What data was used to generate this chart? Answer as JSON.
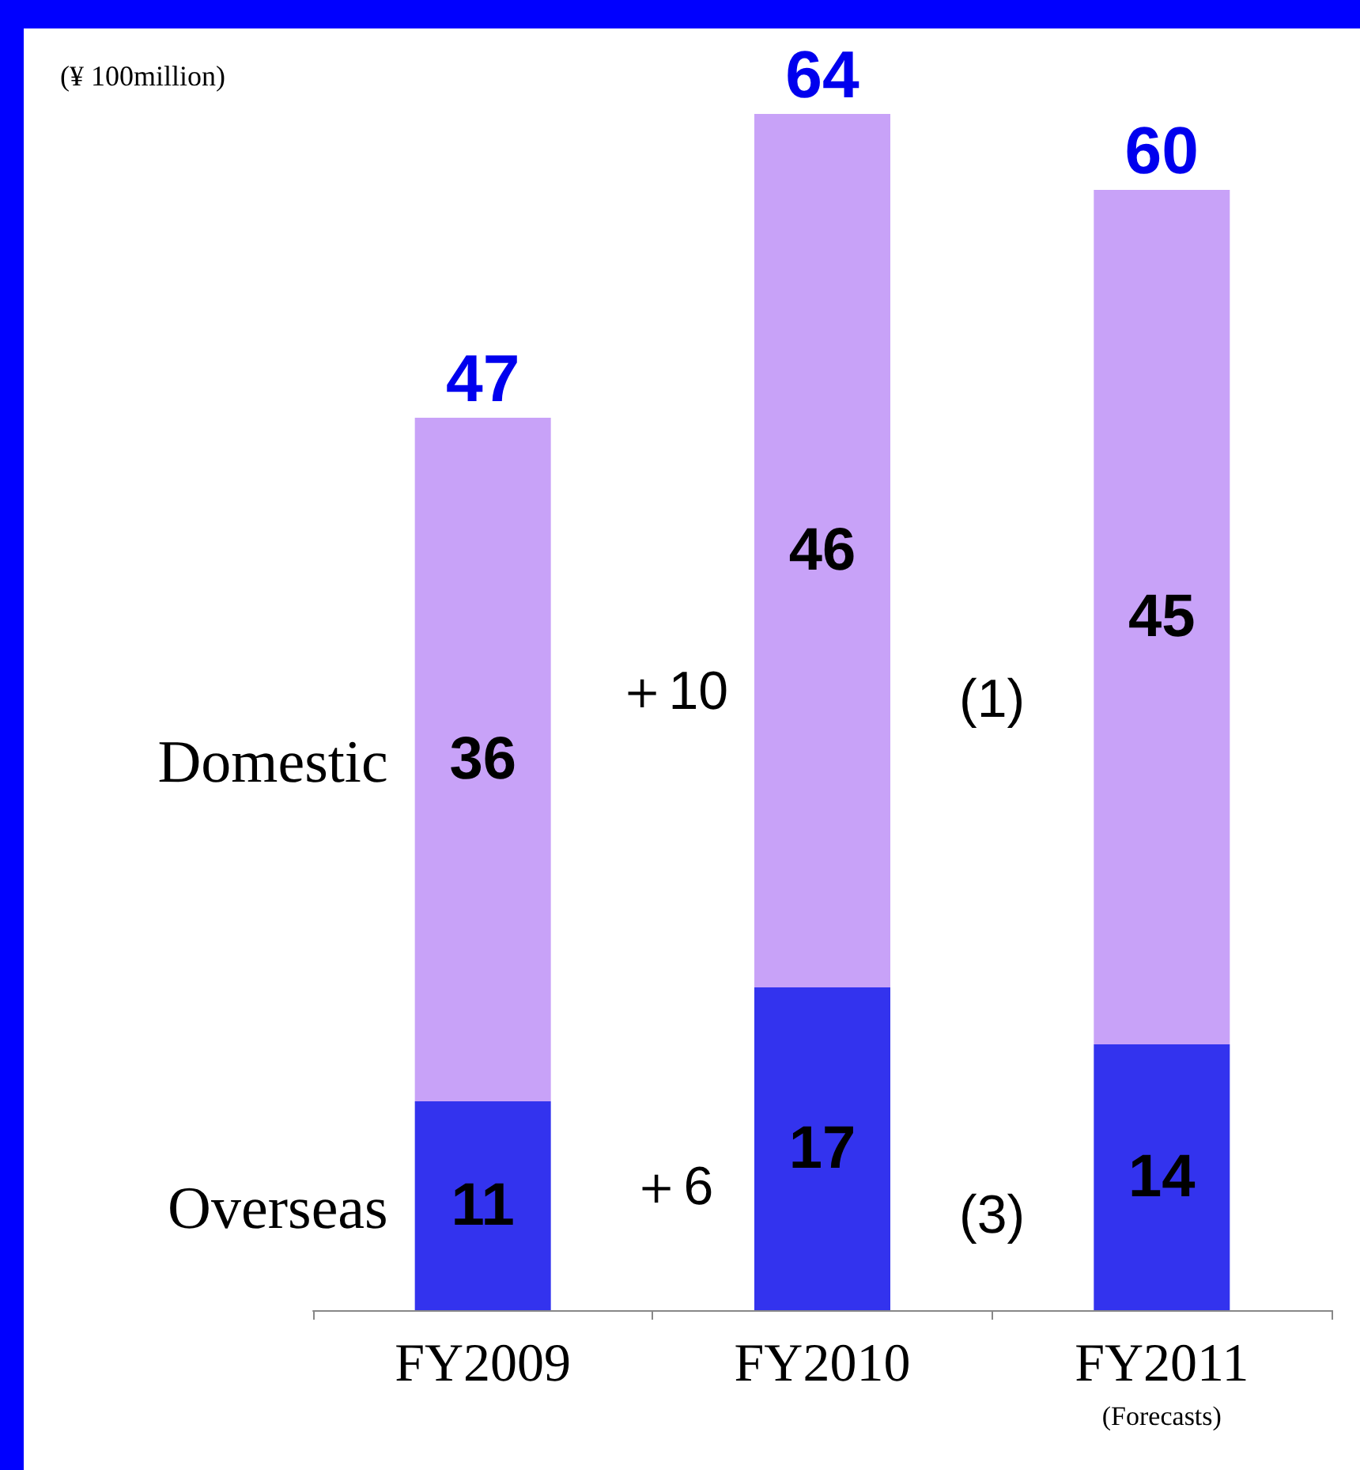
{
  "chart_data": {
    "type": "bar",
    "stacked": true,
    "data_labels": true,
    "legend": "left",
    "categories": [
      "FY2009",
      "FY2010",
      "FY2011\n(Forecasts)"
    ],
    "series": [
      {
        "name": "Overseas",
        "color": "#3333ee",
        "values": [
          11,
          17,
          14
        ]
      },
      {
        "name": "Domestic",
        "color": "#c8a2f8",
        "values": [
          36,
          46,
          45
        ]
      }
    ],
    "totals": [
      "47",
      "64",
      "60"
    ],
    "annotations": [
      "(¥ 100million)",
      "＋10",
      "(1)",
      "＋6",
      "(3)"
    ]
  }
}
